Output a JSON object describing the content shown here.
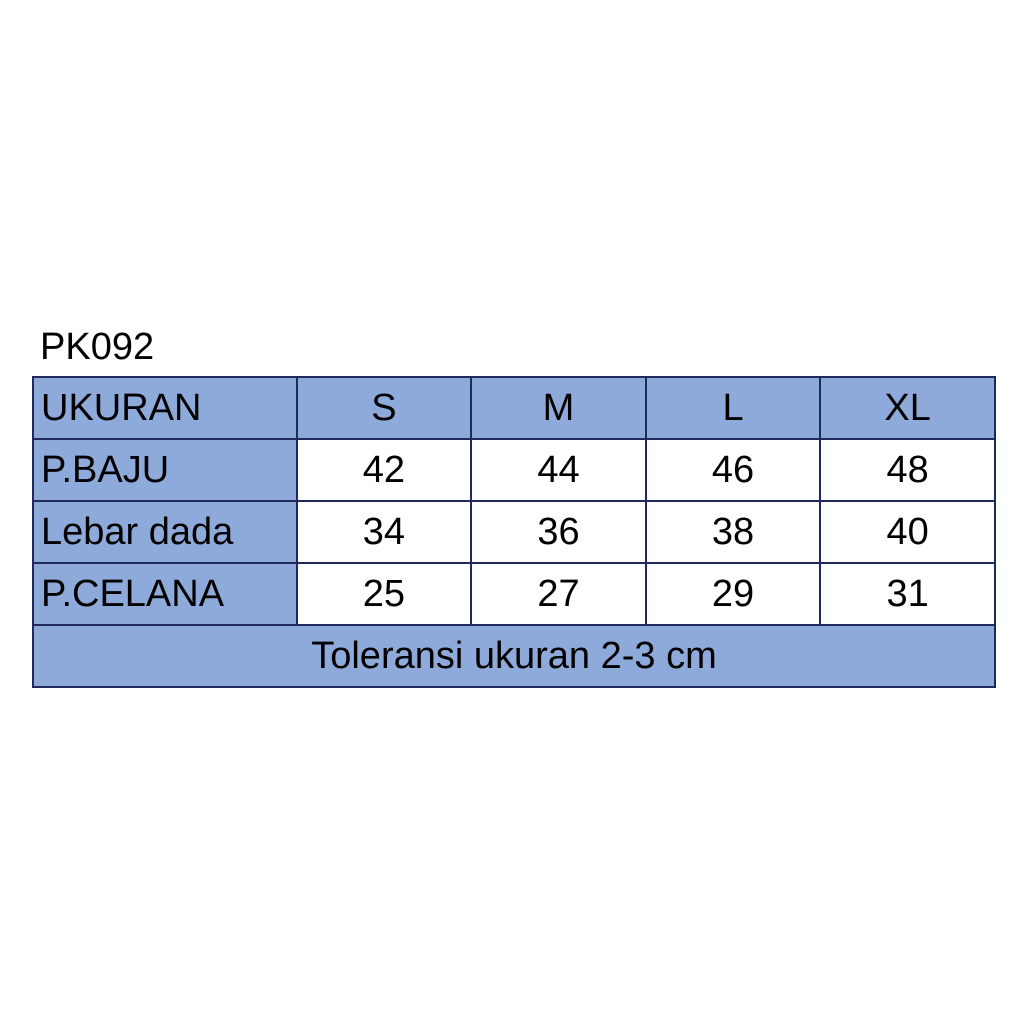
{
  "title": "PK092",
  "header": {
    "label": "UKURAN",
    "sizes": [
      "S",
      "M",
      "L",
      "XL"
    ]
  },
  "rows": [
    {
      "label": "P.BAJU",
      "values": [
        "42",
        "44",
        "46",
        "48"
      ]
    },
    {
      "label": "Lebar dada",
      "values": [
        "34",
        "36",
        "38",
        "40"
      ]
    },
    {
      "label": "P.CELANA",
      "values": [
        "25",
        "27",
        "29",
        "31"
      ]
    }
  ],
  "footer": "Toleransi ukuran 2-3 cm",
  "colors": {
    "header_fill": "#8eaadb",
    "border": "#1f2a5a"
  }
}
